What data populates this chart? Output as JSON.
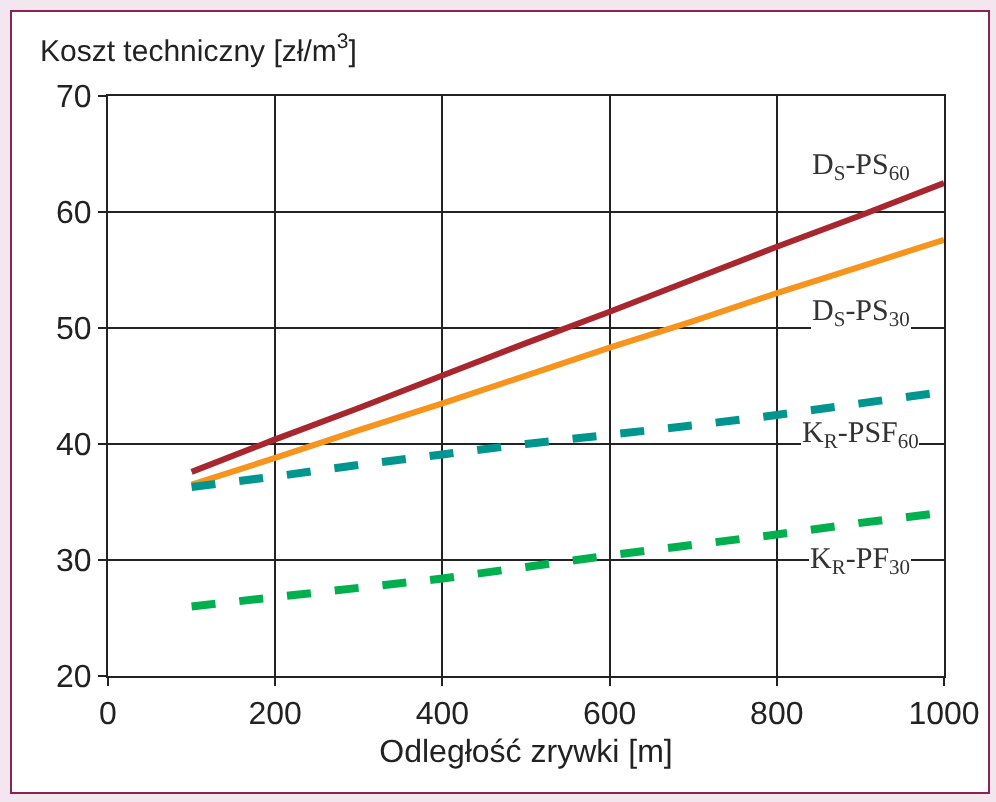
{
  "chart_data": {
    "type": "line",
    "ylabel": "Koszt techniczny [zł/m$^{3}$]",
    "xlabel": "Odległość zrywki [m]",
    "x": [
      100,
      200,
      300,
      400,
      500,
      600,
      700,
      800,
      900,
      1000
    ],
    "xlim": [
      0,
      1000
    ],
    "xticks": [
      0,
      200,
      400,
      600,
      800,
      1000
    ],
    "ylim": [
      20,
      70
    ],
    "yticks": [
      20,
      30,
      40,
      50,
      60,
      70
    ],
    "grid": true,
    "series": [
      {
        "name": "D$_{S}$-PS$_{60}$",
        "color": "#a8262e",
        "line_style": "solid",
        "values": [
          37.6,
          40.4,
          43.1,
          45.9,
          48.7,
          51.4,
          54.2,
          57.0,
          59.7,
          62.5
        ]
      },
      {
        "name": "D$_{S}$-PS$_{30}$",
        "color": "#f7941d",
        "line_style": "solid",
        "values": [
          36.5,
          38.8,
          41.2,
          43.5,
          45.9,
          48.3,
          50.6,
          53.0,
          55.3,
          57.6
        ]
      },
      {
        "name": "K$_{R}$-PSF$_{60}$",
        "color": "#00968f",
        "line_style": "dashed",
        "values": [
          36.3,
          37.2,
          38.2,
          39.1,
          40.0,
          40.8,
          41.6,
          42.5,
          43.5,
          44.5
        ]
      },
      {
        "name": "K$_{R}$-PF$_{30}$",
        "color": "#00b04f",
        "line_style": "dashed",
        "values": [
          26.0,
          26.8,
          27.6,
          28.4,
          29.4,
          30.4,
          31.3,
          32.2,
          33.2,
          34.1
        ]
      }
    ]
  }
}
